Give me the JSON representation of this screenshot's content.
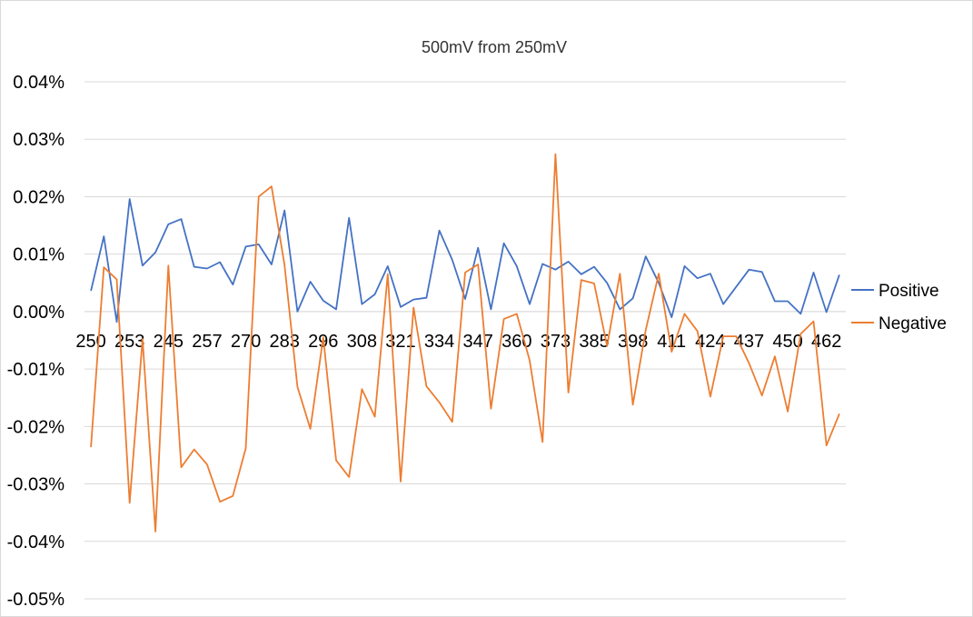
{
  "chart_data": {
    "type": "line",
    "title": "500mV from 250mV",
    "xlabel": "",
    "ylabel": "",
    "ylim": [
      -0.05,
      0.04
    ],
    "y_ticks": [
      "0.04%",
      "0.03%",
      "0.02%",
      "0.01%",
      "0.00%",
      "-0.01%",
      "-0.02%",
      "-0.03%",
      "-0.04%",
      "-0.05%"
    ],
    "y_tick_values": [
      0.04,
      0.03,
      0.02,
      0.01,
      0.0,
      -0.01,
      -0.02,
      -0.03,
      -0.04,
      -0.05
    ],
    "x_tick_labels": [
      "250",
      "253",
      "245",
      "257",
      "270",
      "283",
      "296",
      "308",
      "321",
      "334",
      "347",
      "360",
      "373",
      "385",
      "398",
      "411",
      "424",
      "437",
      "450",
      "462"
    ],
    "x_tick_every": 3,
    "grid": true,
    "legend_position": "right",
    "series": [
      {
        "name": "Positive",
        "color": "#4472C4",
        "values": [
          0.0036,
          0.0131,
          -0.0018,
          0.0196,
          0.008,
          0.0103,
          0.0152,
          0.0161,
          0.0078,
          0.0075,
          0.0086,
          0.0047,
          0.0113,
          0.0117,
          0.0082,
          0.0176,
          0.0,
          0.0052,
          0.0019,
          0.0004,
          0.0163,
          0.0013,
          0.003,
          0.0079,
          0.0008,
          0.0021,
          0.0024,
          0.0141,
          0.009,
          0.0022,
          0.0111,
          0.0004,
          0.0119,
          0.0079,
          0.0013,
          0.0083,
          0.0073,
          0.0087,
          0.0065,
          0.0078,
          0.005,
          0.0004,
          0.0023,
          0.0096,
          0.005,
          -0.001,
          0.0079,
          0.0058,
          0.0066,
          0.0013,
          0.0043,
          0.0073,
          0.0069,
          0.0018,
          0.0018,
          -0.0004,
          0.0068,
          -0.0001,
          0.0064
        ]
      },
      {
        "name": "Negative",
        "color": "#ED7D31",
        "values": [
          -0.0236,
          0.0077,
          0.0056,
          -0.0333,
          -0.0048,
          -0.0383,
          0.008,
          -0.0271,
          -0.024,
          -0.0266,
          -0.0331,
          -0.0321,
          -0.0238,
          0.02,
          0.0218,
          0.0081,
          -0.0131,
          -0.0204,
          -0.0045,
          -0.0259,
          -0.0288,
          -0.0135,
          -0.0183,
          0.0065,
          -0.0296,
          0.0007,
          -0.013,
          -0.0158,
          -0.0192,
          0.0068,
          0.0082,
          -0.0169,
          -0.0013,
          -0.0004,
          -0.0085,
          -0.0227,
          0.0274,
          -0.0141,
          0.0055,
          0.0049,
          -0.006,
          0.0066,
          -0.0162,
          -0.0032,
          0.0066,
          -0.007,
          -0.0004,
          -0.0034,
          -0.0148,
          -0.0043,
          -0.0043,
          -0.009,
          -0.0146,
          -0.0078,
          -0.0174,
          -0.0039,
          -0.0017,
          -0.0233,
          -0.0178
        ]
      }
    ]
  }
}
